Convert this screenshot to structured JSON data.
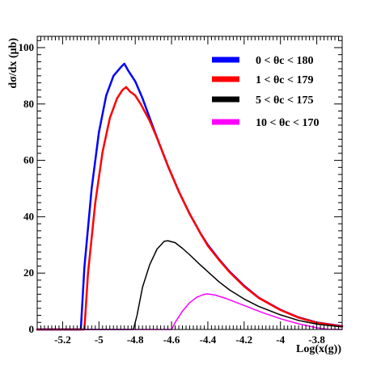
{
  "chart_data": {
    "type": "line",
    "title": "",
    "xlabel": "Log(x(g))",
    "ylabel": "dσ/dx (μb)",
    "xlim": [
      -5.34,
      -3.66
    ],
    "ylim": [
      0,
      104
    ],
    "x_ticks": [
      -5.2,
      -5,
      -4.8,
      -4.6,
      -4.4,
      -4.2,
      -4,
      -3.8
    ],
    "x_tick_labels": [
      "-5.2",
      "-5",
      "-4.8",
      "-4.6",
      "-4.4",
      "-4.2",
      "-4",
      "-3.8"
    ],
    "y_ticks": [
      0,
      20,
      40,
      60,
      80,
      100
    ],
    "y_tick_labels": [
      "0",
      "20",
      "40",
      "60",
      "80",
      "100"
    ],
    "legend_position": "top-right",
    "series": [
      {
        "name": "0 < θc < 180",
        "color": "#0000ff",
        "points": [
          [
            -5.34,
            0
          ],
          [
            -5.1,
            0
          ],
          [
            -5.08,
            22
          ],
          [
            -5.04,
            50
          ],
          [
            -5.0,
            70
          ],
          [
            -4.96,
            83
          ],
          [
            -4.92,
            90
          ],
          [
            -4.88,
            93
          ],
          [
            -4.86,
            94.3
          ],
          [
            -4.84,
            92
          ],
          [
            -4.8,
            88
          ],
          [
            -4.76,
            82
          ],
          [
            -4.72,
            75
          ],
          [
            -4.68,
            68
          ],
          [
            -4.62,
            58
          ],
          [
            -4.56,
            49
          ],
          [
            -4.5,
            41
          ],
          [
            -4.44,
            34
          ],
          [
            -4.4,
            30
          ],
          [
            -4.34,
            25
          ],
          [
            -4.28,
            20.5
          ],
          [
            -4.2,
            15.5
          ],
          [
            -4.12,
            11.3
          ],
          [
            -4.0,
            7
          ],
          [
            -3.9,
            4.3
          ],
          [
            -3.8,
            2.5
          ],
          [
            -3.66,
            1.2
          ]
        ]
      },
      {
        "name": "1 < θc < 179",
        "color": "#ff0000",
        "points": [
          [
            -5.34,
            0
          ],
          [
            -5.08,
            0
          ],
          [
            -5.06,
            20
          ],
          [
            -5.02,
            45
          ],
          [
            -4.98,
            63
          ],
          [
            -4.94,
            75
          ],
          [
            -4.9,
            82
          ],
          [
            -4.87,
            85
          ],
          [
            -4.85,
            86
          ],
          [
            -4.83,
            84.5
          ],
          [
            -4.8,
            83
          ],
          [
            -4.77,
            80
          ],
          [
            -4.72,
            74
          ],
          [
            -4.68,
            68
          ],
          [
            -4.62,
            58
          ],
          [
            -4.56,
            49
          ],
          [
            -4.5,
            41
          ],
          [
            -4.44,
            34
          ],
          [
            -4.4,
            29.7
          ],
          [
            -4.34,
            24.8
          ],
          [
            -4.28,
            20.3
          ],
          [
            -4.2,
            15.3
          ],
          [
            -4.12,
            11.2
          ],
          [
            -4.0,
            6.9
          ],
          [
            -3.9,
            4.2
          ],
          [
            -3.8,
            2.4
          ],
          [
            -3.66,
            1.1
          ]
        ]
      },
      {
        "name": "5 < θc < 175",
        "color": "#000000",
        "points": [
          [
            -5.34,
            0
          ],
          [
            -4.81,
            0
          ],
          [
            -4.79,
            5
          ],
          [
            -4.76,
            15
          ],
          [
            -4.72,
            23
          ],
          [
            -4.68,
            28.5
          ],
          [
            -4.64,
            31.3
          ],
          [
            -4.62,
            31.5
          ],
          [
            -4.58,
            30.8
          ],
          [
            -4.54,
            28.8
          ],
          [
            -4.5,
            26.5
          ],
          [
            -4.44,
            22.8
          ],
          [
            -4.4,
            20.5
          ],
          [
            -4.34,
            17
          ],
          [
            -4.28,
            14
          ],
          [
            -4.2,
            10.8
          ],
          [
            -4.12,
            8.2
          ],
          [
            -4.0,
            5.2
          ],
          [
            -3.9,
            3.2
          ],
          [
            -3.8,
            1.9
          ],
          [
            -3.66,
            0.9
          ]
        ]
      },
      {
        "name": "10 < θc < 170",
        "color": "#ff00ff",
        "points": [
          [
            -5.34,
            0
          ],
          [
            -4.6,
            0
          ],
          [
            -4.58,
            2.5
          ],
          [
            -4.54,
            6.5
          ],
          [
            -4.5,
            9.5
          ],
          [
            -4.46,
            11.5
          ],
          [
            -4.42,
            12.5
          ],
          [
            -4.4,
            12.6
          ],
          [
            -4.36,
            12.2
          ],
          [
            -4.3,
            11
          ],
          [
            -4.24,
            9.5
          ],
          [
            -4.18,
            8
          ],
          [
            -4.1,
            6
          ],
          [
            -4.0,
            3.8
          ],
          [
            -3.9,
            2
          ],
          [
            -3.8,
            0.6
          ],
          [
            -3.74,
            0.1
          ],
          [
            -3.66,
            0
          ]
        ]
      }
    ]
  }
}
